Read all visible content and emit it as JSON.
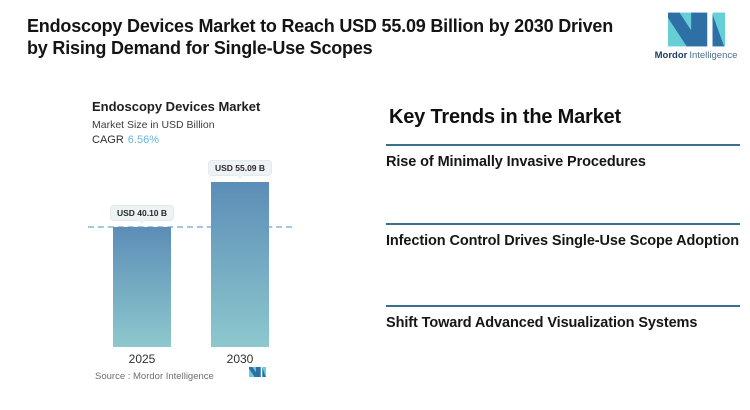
{
  "header": {
    "title_lines": [
      "Endoscopy Devices Market to Reach USD 55.09 Billion by 2030 Driven",
      "by Rising Demand for Single-Use Scopes"
    ],
    "brand": {
      "name_bold": "Mordor",
      "name_light": "Intelligence"
    }
  },
  "chart": {
    "title": "Endoscopy Devices Market",
    "subtitle": "Market Size in USD Billion",
    "cagr_label": "CAGR",
    "cagr_value": "6.56%",
    "source_label": "Source :  Mordor Intelligence",
    "bars": [
      {
        "year": "2025",
        "value_label": "USD 40.10 B"
      },
      {
        "year": "2030",
        "value_label": "USD 55.09 B"
      }
    ]
  },
  "chart_data": {
    "type": "bar",
    "categories": [
      "2025",
      "2030"
    ],
    "values": [
      40.1,
      55.09
    ],
    "value_labels": [
      "USD 40.10 B",
      "USD 55.09 B"
    ],
    "title": "Endoscopy Devices Market",
    "ylabel": "Market Size in USD Billion",
    "unit": "USD Billion",
    "cagr_percent": 6.56,
    "reference_line_value": 40.1,
    "ylim": [
      0,
      60
    ],
    "grid": false,
    "legend": "none",
    "source": "Mordor Intelligence"
  },
  "trends": {
    "heading": "Key Trends in the Market",
    "items": [
      {
        "label": "Rise of Minimally Invasive Procedures"
      },
      {
        "label": "Infection Control Drives Single-Use Scope Adoption"
      },
      {
        "label": "Shift Toward Advanced Visualization Systems"
      }
    ]
  },
  "colors": {
    "title_text": "#141414",
    "brand_blue": "#2e6fa5",
    "brand_teal": "#66cfd6",
    "brand_name_dark": "#1c3c5e",
    "brand_name_light": "#49708c",
    "bar_top": "#5c8db7",
    "bar_bottom": "#8dc8cd",
    "dashed_line": "#a5c6e5",
    "divider": "#38708f",
    "cagr_value": "#68b6da",
    "pill_bg": "#edf2f4",
    "pill_text": "#2a2a2a",
    "muted_text": "#6f6f6f"
  }
}
